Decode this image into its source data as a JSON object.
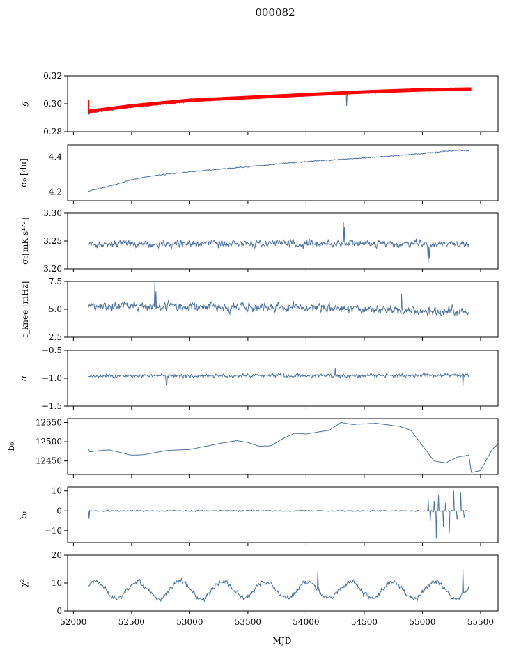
{
  "figure": {
    "title": "000082",
    "xlabel": "MJD"
  },
  "colors": {
    "series": "#4c72a0",
    "fit": "#ff0000",
    "axes": "#000000"
  },
  "chart_data": {
    "type": "line",
    "xlim": [
      51950,
      55650
    ],
    "xticks": [
      52000,
      52500,
      53000,
      53500,
      54000,
      54500,
      55000,
      55500
    ],
    "x_range": [
      52130,
      55400
    ],
    "panels": [
      {
        "id": "g",
        "ylabel": "g",
        "ylim": [
          0.28,
          0.32
        ],
        "yticks": [
          0.28,
          0.3,
          0.32
        ],
        "ytick_labels": [
          "0.28",
          "0.30",
          "0.32"
        ],
        "trend": [
          [
            52130,
            0.2935
          ],
          [
            52500,
            0.2975
          ],
          [
            53000,
            0.3015
          ],
          [
            53500,
            0.304
          ],
          [
            54000,
            0.306
          ],
          [
            54500,
            0.308
          ],
          [
            55000,
            0.3095
          ],
          [
            55400,
            0.3105
          ]
        ],
        "noise": 0.0008,
        "spikes": [
          [
            52135,
            0.2925
          ],
          [
            54350,
            0.2985
          ],
          [
            55090,
            0.3085
          ]
        ],
        "fit": [
          [
            52130,
            0.2945
          ],
          [
            52500,
            0.2985
          ],
          [
            53000,
            0.3025
          ],
          [
            53500,
            0.3045
          ],
          [
            54000,
            0.3065
          ],
          [
            54500,
            0.3085
          ],
          [
            55000,
            0.31
          ],
          [
            55400,
            0.3105
          ]
        ],
        "fit_end": 55420
      },
      {
        "id": "sigma0_du",
        "ylabel": "σ₀ [du]",
        "ylim": [
          4.15,
          4.47
        ],
        "yticks": [
          4.2,
          4.4
        ],
        "ytick_labels": [
          "4.2",
          "4.4"
        ],
        "trend": [
          [
            52130,
            4.205
          ],
          [
            52300,
            4.23
          ],
          [
            52500,
            4.27
          ],
          [
            52700,
            4.295
          ],
          [
            53000,
            4.315
          ],
          [
            53500,
            4.345
          ],
          [
            54000,
            4.375
          ],
          [
            54500,
            4.395
          ],
          [
            55000,
            4.42
          ],
          [
            55300,
            4.44
          ],
          [
            55400,
            4.435
          ]
        ],
        "noise": 0.004
      },
      {
        "id": "sigma0_mk",
        "ylabel": "σ₀[mK s¹ᐟ²]",
        "ylim": [
          3.2,
          3.3
        ],
        "yticks": [
          3.2,
          3.25,
          3.3
        ],
        "ytick_labels": [
          "3.20",
          "3.25",
          "3.30"
        ],
        "trend": [
          [
            52130,
            3.245
          ],
          [
            55400,
            3.245
          ]
        ],
        "noise": 0.009,
        "spikes": [
          [
            54320,
            3.285
          ],
          [
            54330,
            3.275
          ],
          [
            55050,
            3.21
          ],
          [
            55060,
            3.218
          ]
        ]
      },
      {
        "id": "fknee",
        "ylabel": "f_knee [mHz]",
        "ylim": [
          2.5,
          7.5
        ],
        "yticks": [
          2.5,
          5.0,
          7.5
        ],
        "ytick_labels": [
          "2.5",
          "5.0",
          "7.5"
        ],
        "trend": [
          [
            52130,
            5.3
          ],
          [
            53500,
            5.2
          ],
          [
            54500,
            5.0
          ],
          [
            55400,
            4.8
          ]
        ],
        "noise": 0.55,
        "spikes": [
          [
            52700,
            7.5
          ],
          [
            52710,
            6.6
          ],
          [
            54820,
            6.4
          ]
        ]
      },
      {
        "id": "alpha",
        "ylabel": "α",
        "ylim": [
          -1.5,
          -0.5
        ],
        "yticks": [
          -1.5,
          -1.0,
          -0.5
        ],
        "ytick_labels": [
          "−1.5",
          "−1.0",
          "−0.5"
        ],
        "trend": [
          [
            52130,
            -0.96
          ],
          [
            55400,
            -0.95
          ]
        ],
        "noise": 0.045,
        "spikes": [
          [
            55350,
            -1.14
          ],
          [
            52800,
            -1.12
          ],
          [
            54250,
            -0.82
          ]
        ]
      },
      {
        "id": "b0",
        "ylabel": "b₀",
        "ylim": [
          12415,
          12560
        ],
        "yticks": [
          12450,
          12500,
          12550
        ],
        "ytick_labels": [
          "12450",
          "12500",
          "12550"
        ],
        "trend": [
          [
            52130,
            12481
          ],
          [
            52140,
            12474
          ],
          [
            52200,
            12476
          ],
          [
            52300,
            12479
          ],
          [
            52400,
            12472
          ],
          [
            52500,
            12465
          ],
          [
            52600,
            12466
          ],
          [
            52800,
            12477
          ],
          [
            53000,
            12480
          ],
          [
            53200,
            12492
          ],
          [
            53400,
            12503
          ],
          [
            53500,
            12498
          ],
          [
            53600,
            12488
          ],
          [
            53700,
            12490
          ],
          [
            53800,
            12508
          ],
          [
            53900,
            12522
          ],
          [
            54000,
            12520
          ],
          [
            54200,
            12530
          ],
          [
            54300,
            12550
          ],
          [
            54400,
            12545
          ],
          [
            54600,
            12548
          ],
          [
            54800,
            12540
          ],
          [
            54900,
            12530
          ],
          [
            55000,
            12490
          ],
          [
            55100,
            12450
          ],
          [
            55200,
            12445
          ],
          [
            55300,
            12460
          ],
          [
            55400,
            12465
          ],
          [
            55420,
            12420
          ],
          [
            55500,
            12425
          ],
          [
            55600,
            12480
          ],
          [
            55700,
            12508
          ],
          [
            55800,
            12507
          ]
        ],
        "noise": 0.6
      },
      {
        "id": "b1",
        "ylabel": "b₁",
        "ylim": [
          -16,
          12
        ],
        "yticks": [
          -10,
          0,
          10
        ],
        "ytick_labels": [
          "−10",
          "0",
          "10"
        ],
        "trend": [
          [
            52130,
            0
          ],
          [
            55400,
            0
          ]
        ],
        "noise": 0.45,
        "spikes": [
          [
            52135,
            -4
          ],
          [
            55050,
            6
          ],
          [
            55070,
            -5
          ],
          [
            55100,
            5
          ],
          [
            55120,
            -14
          ],
          [
            55140,
            8
          ],
          [
            55180,
            -8
          ],
          [
            55200,
            4
          ],
          [
            55230,
            -11
          ],
          [
            55270,
            10
          ],
          [
            55300,
            -4
          ],
          [
            55330,
            9
          ],
          [
            55360,
            -3
          ]
        ]
      },
      {
        "id": "chi2",
        "ylabel": "χ²",
        "ylim": [
          0,
          20
        ],
        "yticks": [
          0,
          10,
          20
        ],
        "ytick_labels": [
          "0",
          "10",
          "20"
        ],
        "trend": [
          [
            52130,
            7.5
          ],
          [
            55400,
            7.5
          ]
        ],
        "seasonal_amplitude": 3.0,
        "seasonal_period_days": 365.25,
        "noise": 1.3,
        "spikes": [
          [
            54100,
            14.5
          ],
          [
            55350,
            15
          ]
        ]
      }
    ]
  }
}
